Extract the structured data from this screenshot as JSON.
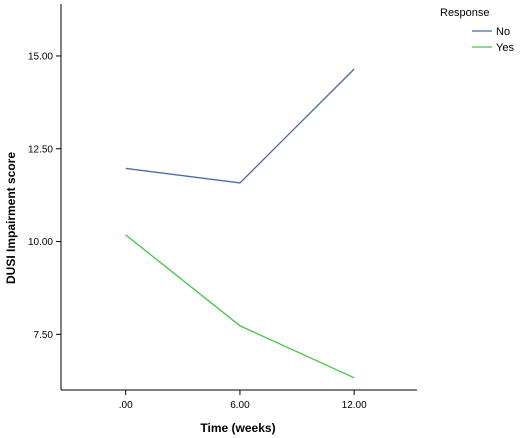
{
  "chart_data": {
    "type": "line",
    "x": [
      0,
      6,
      12
    ],
    "x_tick_labels": [
      ".00",
      "6.00",
      "12.00"
    ],
    "xlim": [
      -3.4,
      15.3
    ],
    "y_ticks": [
      7.5,
      10.0,
      12.5,
      15.0
    ],
    "y_tick_labels": [
      "7.50",
      "10.00",
      "12.50",
      "15.00"
    ],
    "ylim": [
      6.0,
      16.4
    ],
    "xlabel": "Time (weeks)",
    "ylabel": "DUSI Impairment score",
    "grid": false,
    "legend_title": "Response",
    "legend_position": "top-right-outside",
    "series": [
      {
        "name": "No",
        "color": "#4a6aa8",
        "values": [
          11.97,
          11.58,
          14.65
        ]
      },
      {
        "name": "Yes",
        "color": "#44c544",
        "values": [
          10.18,
          7.73,
          6.33
        ]
      }
    ]
  }
}
